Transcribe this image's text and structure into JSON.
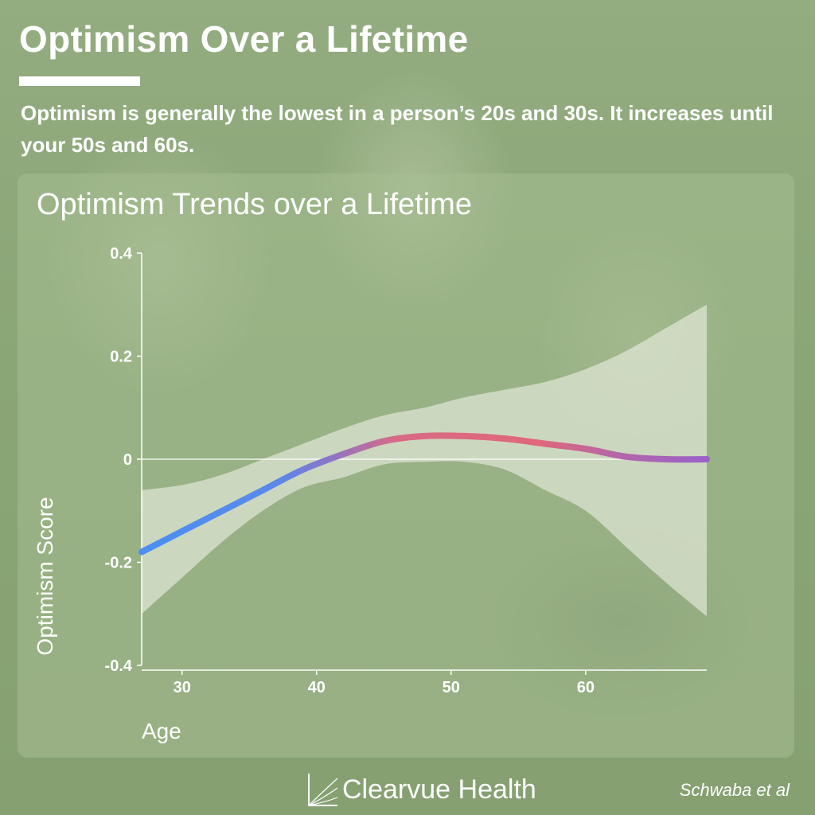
{
  "page": {
    "title": "Optimism Over a Lifetime",
    "subtitle": "Optimism is generally the lowest in a person’s 20s and 30s. It increases until your 50s and 60s.",
    "brand": "Clearvue Health",
    "credit": "Schwaba et al",
    "colors": {
      "background": "#8da77a",
      "curve_start": "#4a90f0",
      "curve_mid": "#e0687a",
      "curve_end": "#9a62c8",
      "band": "#eef0e6"
    },
    "icons": [
      "clearvue-logo-icon"
    ]
  },
  "chart_data": {
    "type": "line",
    "title": "Optimism Trends over a Lifetime",
    "xlabel": "Age",
    "ylabel": "Optimism Score",
    "xlim": [
      27,
      69
    ],
    "ylim": [
      -0.4,
      0.4
    ],
    "x_ticks": [
      30,
      40,
      50,
      60
    ],
    "y_ticks": [
      {
        "value": 0.4,
        "label": "0.4"
      },
      {
        "value": 0.2,
        "label": "0.2"
      },
      {
        "value": 0,
        "label": "0"
      },
      {
        "value": -0.2,
        "label": "-0.2"
      },
      {
        "value": -0.4,
        "label": "-0.4"
      }
    ],
    "grid": false,
    "zero_line": true,
    "series": [
      {
        "x": [
          27,
          30,
          33,
          36,
          39,
          42,
          45,
          48,
          51,
          54,
          57,
          60,
          63,
          66,
          69
        ],
        "y": [
          -0.18,
          -0.14,
          -0.1,
          -0.06,
          -0.02,
          0.01,
          0.035,
          0.045,
          0.045,
          0.04,
          0.03,
          0.02,
          0.005,
          0.0,
          0.0
        ],
        "upper": [
          -0.06,
          -0.05,
          -0.03,
          0.0,
          0.03,
          0.06,
          0.085,
          0.1,
          0.12,
          0.135,
          0.15,
          0.175,
          0.21,
          0.255,
          0.3
        ],
        "lower": [
          -0.3,
          -0.23,
          -0.16,
          -0.1,
          -0.055,
          -0.035,
          -0.01,
          -0.005,
          -0.005,
          -0.02,
          -0.06,
          -0.1,
          -0.17,
          -0.24,
          -0.305
        ]
      }
    ]
  }
}
